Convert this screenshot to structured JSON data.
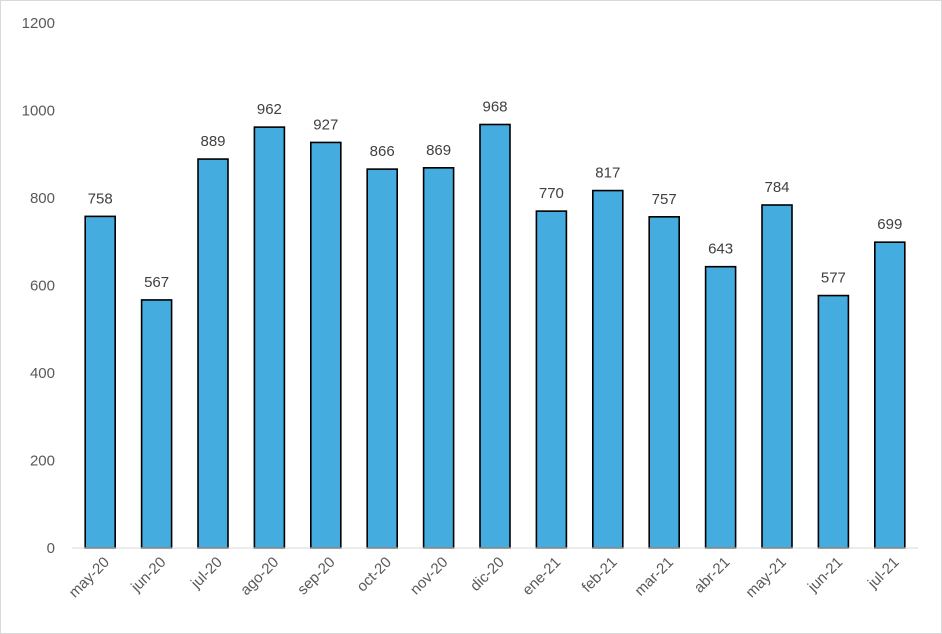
{
  "chart_data": {
    "type": "bar",
    "title": "",
    "xlabel": "",
    "ylabel": "",
    "categories": [
      "may-20",
      "jun-20",
      "jul-20",
      "ago-20",
      "sep-20",
      "oct-20",
      "nov-20",
      "dic-20",
      "ene-21",
      "feb-21",
      "mar-21",
      "abr-21",
      "may-21",
      "jun-21",
      "jul-21"
    ],
    "values": [
      758,
      567,
      889,
      962,
      927,
      866,
      869,
      968,
      770,
      817,
      757,
      643,
      784,
      577,
      699
    ],
    "ylim": [
      0,
      1200
    ],
    "yticks": [
      "0",
      "200",
      "400",
      "600",
      "800",
      "1000",
      "1200"
    ],
    "grid": false,
    "legend": "none",
    "bar_color": "#45ace0",
    "bar_edge_color": "#000000",
    "data_labels": true
  }
}
